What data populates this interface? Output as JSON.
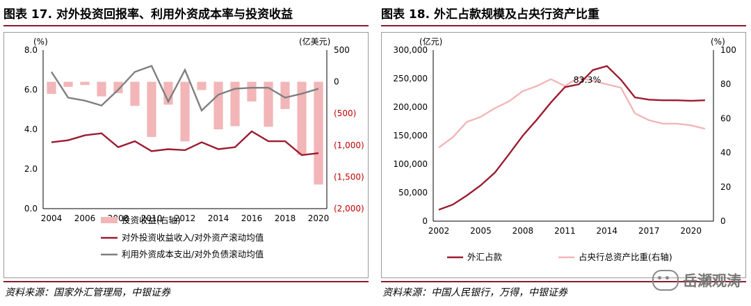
{
  "left": {
    "title": "图表 17. 对外投资回报率、利用外资成本率与投资收益",
    "source": "资料来源：国家外汇管理局，中银证券"
  },
  "right": {
    "title": "图表 18. 外汇占款规模及占央行资产比重",
    "source": "资料来源：中国人民银行，万得，中银证券"
  },
  "watermark": "岳瀬观涛",
  "colors": {
    "dark_red": "#9b1b30",
    "pink": "#f2b6b8",
    "grey": "#7f7f7f",
    "rule": "#8b1a2b"
  },
  "chart_data": [
    {
      "type": "bar",
      "x": [
        2004,
        2005,
        2006,
        2007,
        2008,
        2009,
        2010,
        2011,
        2012,
        2013,
        2014,
        2015,
        2016,
        2017,
        2018,
        2019,
        2020
      ],
      "x_ticks": [
        "2004",
        "2006",
        "2008",
        "2010",
        "2012",
        "2014",
        "2016",
        "2018",
        "2020"
      ],
      "left_axis": {
        "unit": "(%)",
        "ylim": [
          0,
          8
        ],
        "ticks": [
          "0.0",
          "2.0",
          "4.0",
          "6.0",
          "8.0"
        ]
      },
      "right_axis": {
        "unit": "(亿美元)",
        "ylim": [
          -2000,
          500
        ],
        "ticks": [
          "500",
          "0",
          "(500)",
          "(1,000)",
          "(1,500)",
          "(2,000)"
        ],
        "tick_color": "#c00000"
      },
      "series": [
        {
          "name": "投资收益(右轴)",
          "type": "bar",
          "axis": "right",
          "color": "#f2b6b8",
          "values": [
            -190,
            -80,
            -50,
            -230,
            -180,
            -380,
            -870,
            -360,
            -940,
            -130,
            -750,
            -700,
            -310,
            -710,
            -430,
            -1150,
            -1620
          ]
        },
        {
          "name": "对外投资收益收入/对外资产滚动均值",
          "type": "line",
          "axis": "left",
          "color": "#9b1b30",
          "values": [
            3.35,
            3.45,
            3.7,
            3.8,
            3.1,
            3.4,
            2.9,
            3.0,
            2.95,
            3.35,
            3.0,
            3.1,
            3.9,
            3.4,
            3.4,
            2.7,
            2.8
          ]
        },
        {
          "name": "利用外资成本支出/对外负债滚动均值",
          "type": "line",
          "axis": "left",
          "color": "#7f7f7f",
          "values": [
            6.9,
            5.6,
            5.45,
            5.2,
            6.0,
            6.9,
            7.2,
            5.4,
            7.0,
            4.95,
            5.75,
            6.05,
            6.1,
            6.1,
            5.6,
            5.8,
            6.05
          ]
        }
      ]
    },
    {
      "type": "line",
      "x": [
        2002,
        2003,
        2004,
        2005,
        2006,
        2007,
        2008,
        2009,
        2010,
        2011,
        2012,
        2013,
        2014,
        2015,
        2016,
        2017,
        2018,
        2019,
        2020,
        2021
      ],
      "x_ticks": [
        "2002",
        "2005",
        "2008",
        "2011",
        "2014",
        "2017",
        "2020"
      ],
      "left_axis": {
        "unit": "(亿元)",
        "ylim": [
          0,
          300000
        ],
        "ticks": [
          "0",
          "50,000",
          "100,000",
          "150,000",
          "200,000",
          "250,000",
          "300,000"
        ]
      },
      "right_axis": {
        "unit": "(%)",
        "ylim": [
          0,
          100
        ],
        "ticks": [
          "0",
          "20",
          "40",
          "60",
          "80",
          "100"
        ]
      },
      "annotation": {
        "text": "83.3%",
        "x": 2012.3,
        "y": 83.3,
        "axis": "right"
      },
      "series": [
        {
          "name": "外汇占款",
          "axis": "left",
          "color": "#9b1b30",
          "values": [
            20000,
            29000,
            45000,
            63000,
            85000,
            117000,
            150000,
            178000,
            208000,
            235000,
            240000,
            265000,
            272000,
            248000,
            217000,
            213000,
            212000,
            212000,
            211000,
            212000
          ]
        },
        {
          "name": "占央行总资产比重(右轴)",
          "axis": "right",
          "color": "#f2b6b8",
          "values": [
            43,
            49,
            58,
            61,
            66,
            70,
            76,
            79,
            83,
            79,
            84,
            82,
            80,
            78,
            63,
            59,
            57,
            57,
            56,
            54
          ]
        }
      ]
    }
  ]
}
